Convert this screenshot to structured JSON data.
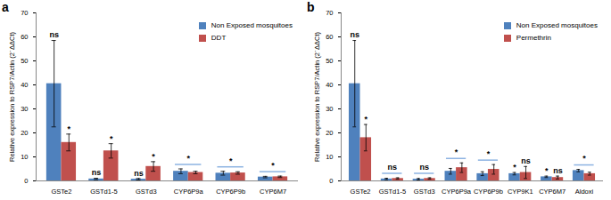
{
  "chart_data": [
    {
      "type": "bar",
      "title": "a",
      "categories": [
        "GSTe2",
        "GSTd1-5",
        "GSTd3",
        "CYP6P9a",
        "CYP6P9b",
        "CYP6M7"
      ],
      "y_label": "Relative expression to RSP7/Actin (2⁻ΔΔCt)",
      "ylim": [
        0,
        70
      ],
      "yticks": [
        0,
        10,
        20,
        30,
        40,
        50,
        60,
        70
      ],
      "legend": "top-right",
      "series": [
        {
          "name": "Non Exposed mosquitoes",
          "color": "#4f81bd",
          "values": [
            40.5,
            0.8,
            0.7,
            4.0,
            3.2,
            1.6
          ],
          "errors": [
            18,
            0.3,
            0.3,
            1.0,
            0.8,
            0.3
          ],
          "significance": [
            "ns",
            "ns",
            "ns",
            null,
            null,
            null
          ]
        },
        {
          "name": "DDT",
          "color": "#c0504d",
          "values": [
            16,
            12.5,
            6,
            3.5,
            3.3,
            1.7
          ],
          "errors": [
            3.5,
            3,
            2,
            0.5,
            0.5,
            0.3
          ],
          "significance": [
            "*",
            "*",
            "*",
            null,
            null,
            null
          ]
        }
      ],
      "pair_significance": [
        null,
        null,
        null,
        "*",
        "*",
        "*"
      ]
    },
    {
      "type": "bar",
      "title": "b",
      "categories": [
        "GSTe2",
        "GSTd1-5",
        "GSTd3",
        "CYP6P9a",
        "CYP6P9b",
        "CYP9K1",
        "CYP6M7",
        "Aldoxi"
      ],
      "y_label": "Relative expression to RSP7/Actin (2⁻ΔΔCt)",
      "ylim": [
        0,
        70
      ],
      "yticks": [
        0,
        10,
        20,
        30,
        40,
        50,
        60,
        70
      ],
      "legend": "top-right",
      "series": [
        {
          "name": "Non Exposed mosquitoes",
          "color": "#4f81bd",
          "values": [
            40.5,
            0.8,
            0.7,
            4.0,
            3.0,
            3.0,
            1.7,
            4.3
          ],
          "errors": [
            18,
            0.3,
            0.3,
            1.2,
            0.8,
            0.5,
            0.3,
            0.5
          ],
          "significance": [
            "ns",
            null,
            null,
            null,
            null,
            "*",
            "*",
            null
          ]
        },
        {
          "name": "Permethrin",
          "color": "#c0504d",
          "values": [
            18,
            1.0,
            1.0,
            5.5,
            4.8,
            3.5,
            1.4,
            3.0
          ],
          "errors": [
            5.5,
            0.3,
            0.3,
            2,
            2,
            2.5,
            0.6,
            0.6
          ],
          "significance": [
            "*",
            null,
            null,
            null,
            null,
            "ns",
            "ns",
            null
          ]
        }
      ],
      "pair_significance": [
        null,
        "ns",
        "ns",
        "*",
        "*",
        null,
        null,
        "*"
      ]
    }
  ]
}
